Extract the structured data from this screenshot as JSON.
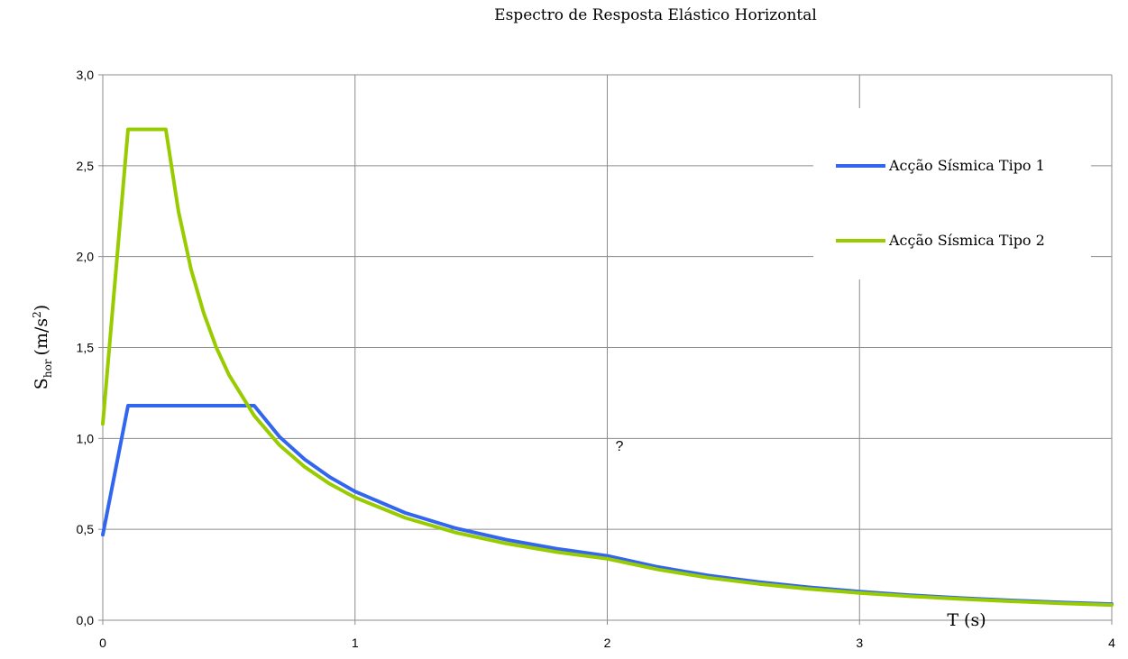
{
  "chart_data": {
    "type": "line",
    "title": "Espectro de Resposta Elástico Horizontal",
    "xlabel": "T (s)",
    "ylabel": {
      "base": "S",
      "sub": "hor",
      "unit_pre": "(m/s",
      "sup": "2",
      "unit_post": ")"
    },
    "xlim": [
      0,
      4
    ],
    "ylim": [
      0,
      3
    ],
    "x_ticks": [
      0,
      1,
      2,
      3,
      4
    ],
    "x_tick_labels": [
      "0",
      "1",
      "2",
      "3",
      "4"
    ],
    "y_ticks": [
      0,
      0.5,
      1,
      1.5,
      2,
      2.5,
      3
    ],
    "y_tick_labels": [
      "0,0",
      "0,5",
      "1,0",
      "1,5",
      "2,0",
      "2,5",
      "3,0"
    ],
    "grid": true,
    "legend_position": "right",
    "annotation": "?",
    "series": [
      {
        "name": "Acção Sísmica Tipo 1",
        "color": "#3366ee",
        "x": [
          0,
          0.1,
          0.6,
          0.7,
          0.8,
          0.9,
          1.0,
          1.2,
          1.4,
          1.6,
          1.8,
          2.0,
          2.2,
          2.4,
          2.6,
          2.8,
          3.0,
          3.2,
          3.4,
          3.6,
          3.8,
          4.0
        ],
        "y": [
          0.47,
          1.18,
          1.18,
          1.01,
          0.885,
          0.787,
          0.708,
          0.59,
          0.506,
          0.443,
          0.393,
          0.354,
          0.293,
          0.246,
          0.21,
          0.181,
          0.157,
          0.138,
          0.122,
          0.109,
          0.098,
          0.089
        ]
      },
      {
        "name": "Acção Sísmica Tipo 2",
        "color": "#99cc00",
        "x": [
          0,
          0.1,
          0.25,
          0.3,
          0.35,
          0.4,
          0.45,
          0.5,
          0.6,
          0.7,
          0.8,
          0.9,
          1.0,
          1.2,
          1.4,
          1.6,
          1.8,
          2.0,
          2.2,
          2.4,
          2.6,
          2.8,
          3.0,
          3.2,
          3.4,
          3.6,
          3.8,
          4.0
        ],
        "y": [
          1.08,
          2.7,
          2.7,
          2.25,
          1.93,
          1.69,
          1.5,
          1.35,
          1.125,
          0.964,
          0.844,
          0.75,
          0.675,
          0.563,
          0.482,
          0.422,
          0.375,
          0.338,
          0.279,
          0.234,
          0.2,
          0.172,
          0.15,
          0.132,
          0.117,
          0.104,
          0.093,
          0.084
        ]
      }
    ]
  }
}
